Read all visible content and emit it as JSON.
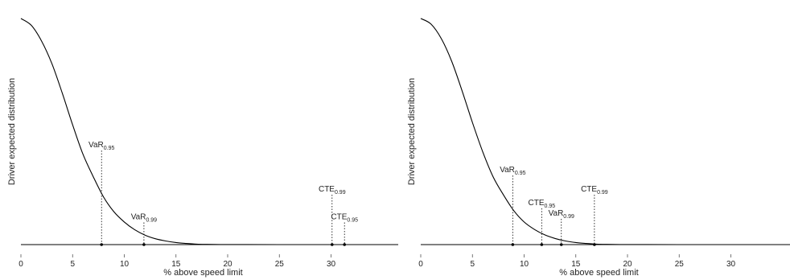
{
  "chart_data": [
    {
      "type": "line",
      "xlabel": "% above speed limit",
      "ylabel": "Driver expected distribution",
      "xlim": [
        0,
        36.5
      ],
      "x_ticks": [
        0,
        5,
        10,
        15,
        20,
        25,
        30
      ],
      "y_ticks_shown": false,
      "curve": {
        "x": [
          0,
          1,
          2,
          3,
          4,
          5,
          6,
          7,
          8,
          9,
          10,
          11,
          12,
          13,
          14,
          15,
          16,
          17,
          18,
          20,
          22,
          25,
          30,
          36.5
        ],
        "y": [
          1.0,
          0.97,
          0.9,
          0.8,
          0.67,
          0.53,
          0.4,
          0.3,
          0.21,
          0.145,
          0.1,
          0.066,
          0.042,
          0.026,
          0.016,
          0.009,
          0.005,
          0.002,
          0.001,
          0.0003,
          0.0001,
          0,
          0,
          0
        ]
      },
      "markers": [
        {
          "name": "VaR",
          "sub": "0.95",
          "x": 7.8,
          "label_y": 0.43
        },
        {
          "name": "VaR",
          "sub": "0.99",
          "x": 11.9,
          "label_y": 0.112
        },
        {
          "name": "CTE",
          "sub": "0.99",
          "x": 30.1,
          "label_y": 0.235
        },
        {
          "name": "CTE",
          "sub": "0.95",
          "x": 31.3,
          "label_y": 0.112
        }
      ]
    },
    {
      "type": "line",
      "xlabel": "% above speed limit",
      "ylabel": "Driver expected distribution",
      "xlim": [
        0,
        36.5
      ],
      "x_ticks": [
        0,
        5,
        10,
        15,
        20,
        25,
        30
      ],
      "y_ticks_shown": false,
      "curve": {
        "x": [
          0,
          1,
          2,
          3,
          4,
          5,
          6,
          7,
          8,
          9,
          10,
          11,
          12,
          13,
          14,
          15,
          16,
          17,
          18,
          20,
          22,
          25,
          30,
          36.5
        ],
        "y": [
          1.0,
          0.975,
          0.91,
          0.81,
          0.68,
          0.54,
          0.41,
          0.3,
          0.22,
          0.15,
          0.1,
          0.067,
          0.043,
          0.027,
          0.016,
          0.009,
          0.005,
          0.002,
          0.001,
          0.0003,
          0.0001,
          0,
          0,
          0
        ]
      },
      "markers": [
        {
          "name": "VaR",
          "sub": "0.95",
          "x": 8.9,
          "label_y": 0.32
        },
        {
          "name": "CTE",
          "sub": "0.95",
          "x": 11.7,
          "label_y": 0.175
        },
        {
          "name": "VaR",
          "sub": "0.99",
          "x": 13.6,
          "label_y": 0.128
        },
        {
          "name": "CTE",
          "sub": "0.99",
          "x": 16.8,
          "label_y": 0.235
        }
      ]
    }
  ]
}
